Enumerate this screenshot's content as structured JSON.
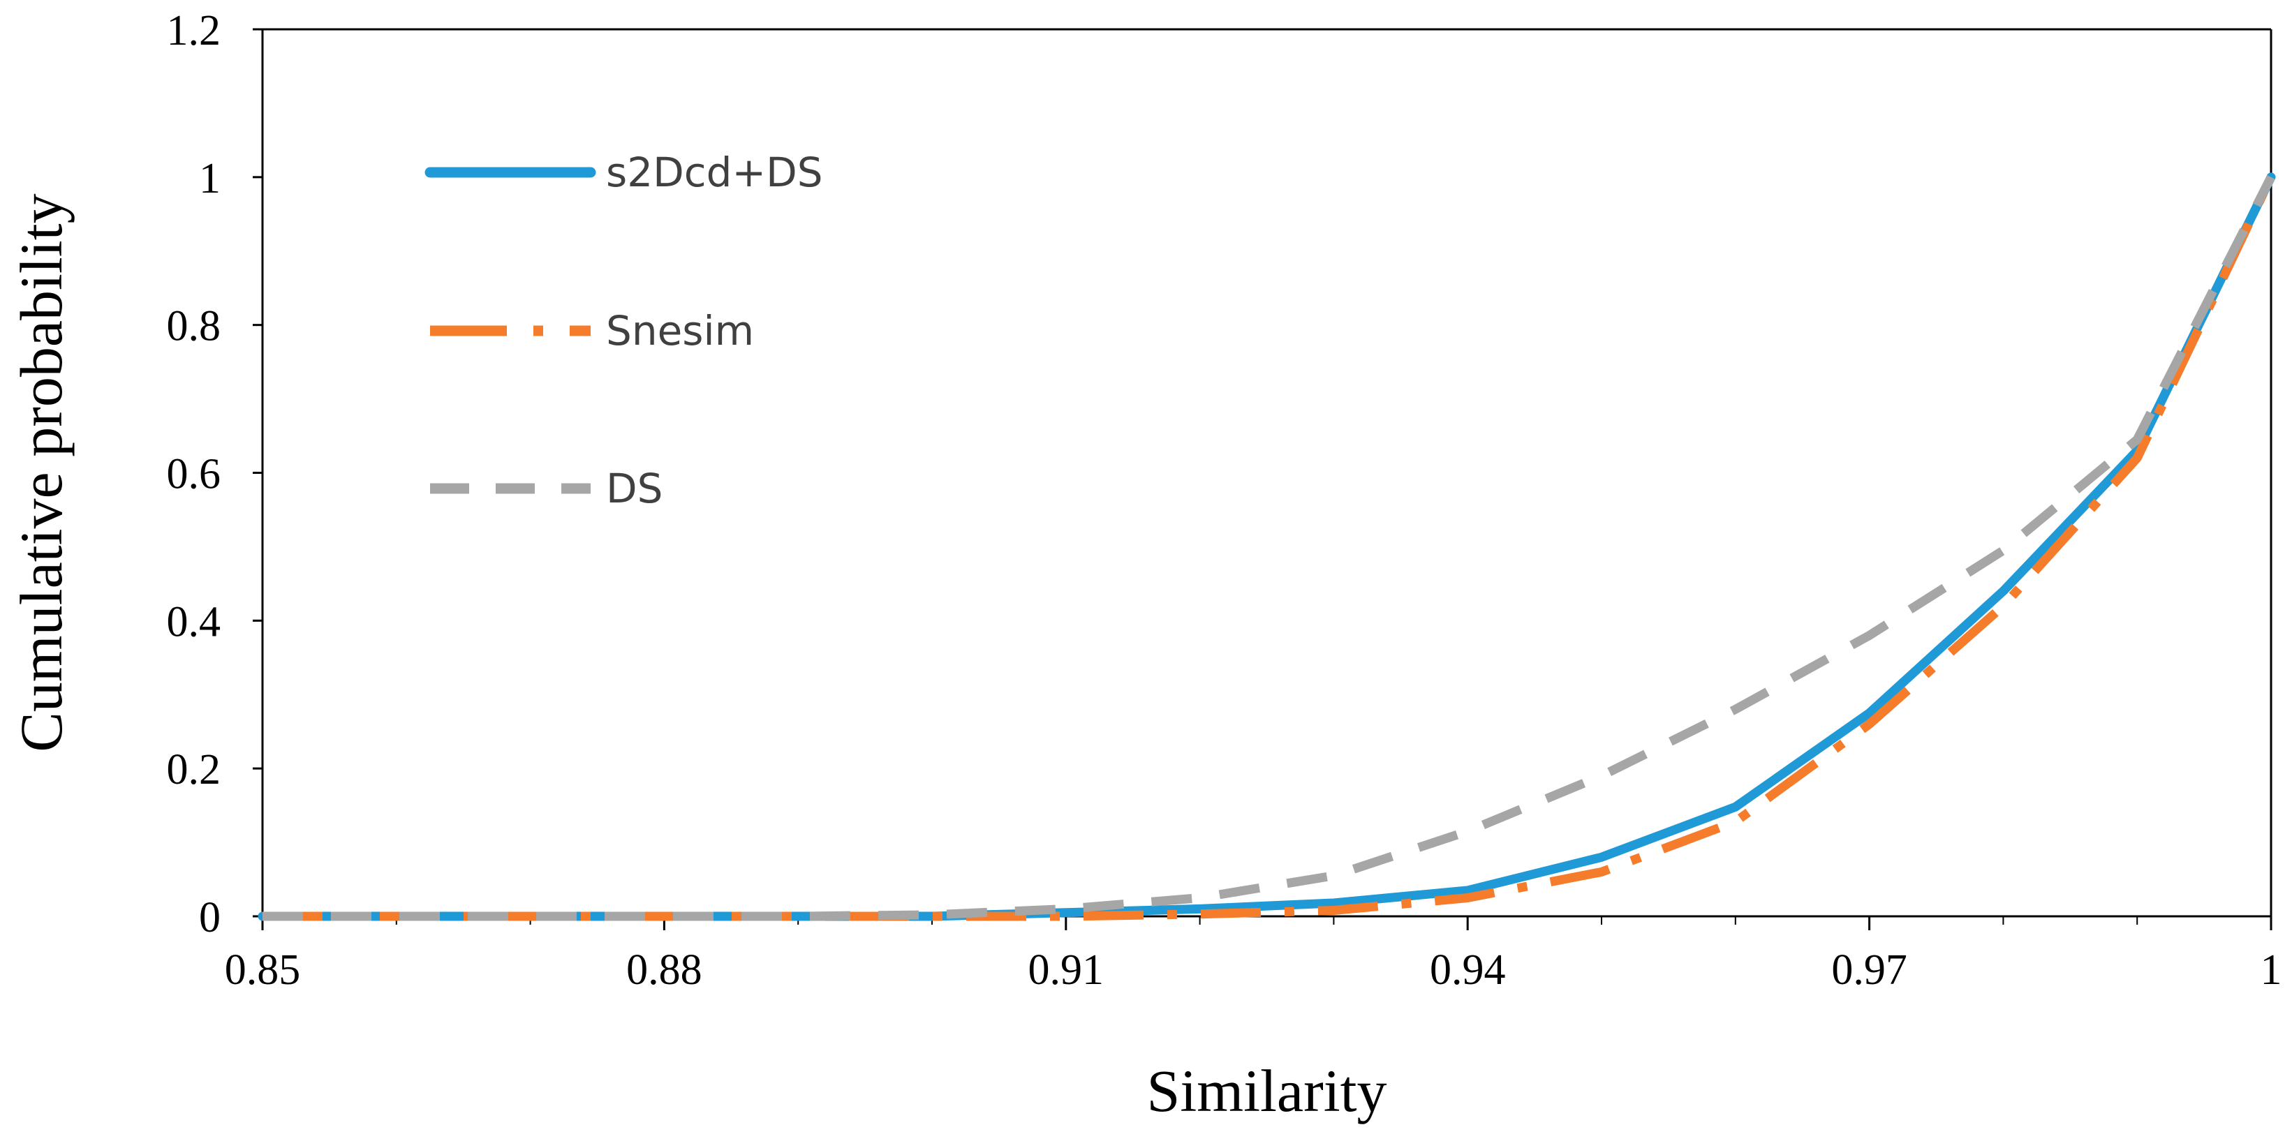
{
  "chart_data": {
    "type": "line",
    "title": "",
    "xlabel": "Similarity",
    "ylabel": "Cumulative probability",
    "xlim": [
      0.85,
      1
    ],
    "ylim": [
      0,
      1.2
    ],
    "x_ticks": [
      {
        "value": 0.85,
        "label": "0.85"
      },
      {
        "value": 0.88,
        "label": "0.88"
      },
      {
        "value": 0.91,
        "label": "0.91"
      },
      {
        "value": 0.94,
        "label": "0.94"
      },
      {
        "value": 0.97,
        "label": "0.97"
      },
      {
        "value": 1,
        "label": "1"
      }
    ],
    "y_ticks": [
      {
        "value": 0,
        "label": "0"
      },
      {
        "value": 0.2,
        "label": "0.2"
      },
      {
        "value": 0.4,
        "label": "0.4"
      },
      {
        "value": 0.6,
        "label": "0.6"
      },
      {
        "value": 0.8,
        "label": "0.8"
      },
      {
        "value": 1,
        "label": "1"
      },
      {
        "value": 1.2,
        "label": "1.2"
      }
    ],
    "x": [
      0.85,
      0.86,
      0.87,
      0.88,
      0.89,
      0.9,
      0.91,
      0.92,
      0.93,
      0.94,
      0.95,
      0.96,
      0.97,
      0.98,
      0.99,
      1.0
    ],
    "grid": false,
    "legend_position": "top-left",
    "series": [
      {
        "name": "s2Dcd+DS",
        "color": "#1f9ad6",
        "style": "solid",
        "values": [
          0,
          0,
          0,
          0,
          0,
          0,
          0.005,
          0.01,
          0.018,
          0.035,
          0.08,
          0.148,
          0.275,
          0.44,
          0.63,
          1.0
        ]
      },
      {
        "name": "Snesim",
        "color": "#f47c2a",
        "style": "long-dash-dot",
        "values": [
          0,
          0,
          0,
          0,
          0,
          0,
          0,
          0.003,
          0.008,
          0.025,
          0.06,
          0.128,
          0.26,
          0.42,
          0.62,
          1.0
        ]
      },
      {
        "name": "DS",
        "color": "#a6a6a6",
        "style": "dashed",
        "values": [
          0,
          0,
          0,
          0,
          0,
          0.002,
          0.01,
          0.025,
          0.055,
          0.115,
          0.19,
          0.28,
          0.38,
          0.495,
          0.645,
          1.0
        ]
      }
    ]
  }
}
